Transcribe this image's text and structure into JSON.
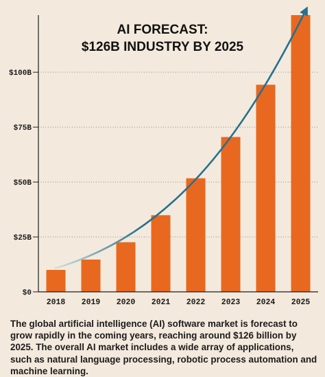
{
  "chart_data": {
    "type": "bar",
    "title_lines": [
      "AI FORECAST:",
      "$126B INDUSTRY BY 2025"
    ],
    "categories": [
      "2018",
      "2019",
      "2020",
      "2021",
      "2022",
      "2023",
      "2024",
      "2025"
    ],
    "values": [
      10,
      14.7,
      22.6,
      34.9,
      51.7,
      70.5,
      94.3,
      126
    ],
    "y_ticks": [
      {
        "value": 0,
        "label": "$0"
      },
      {
        "value": 25,
        "label": "$25B"
      },
      {
        "value": 50,
        "label": "$50B"
      },
      {
        "value": 75,
        "label": "$75B"
      },
      {
        "value": 100,
        "label": "$100B"
      }
    ],
    "ylim": [
      0,
      126
    ],
    "grid": "horizontal dotted",
    "bar_color": "#e8681f",
    "trend_color": "#27708e",
    "trend_start_color": "#d6e1e1",
    "background": "#f3eadd"
  },
  "caption": "The global artificial intelligence (AI) software market is forecast to grow rapidly in the coming years, reaching around $126 billion by 2025. The overall AI market includes a wide array of applications, such as natural language processing, robotic process automation and machine learning."
}
